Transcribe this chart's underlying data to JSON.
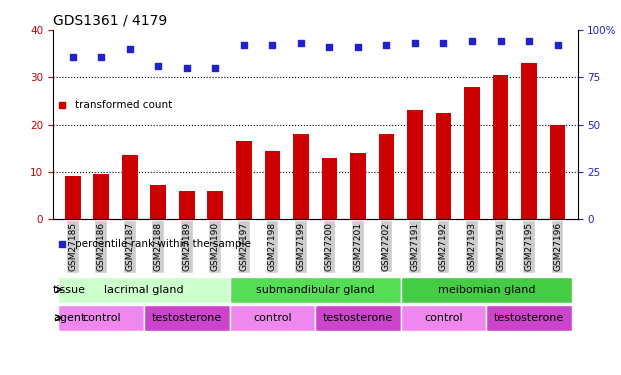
{
  "title": "GDS1361 / 4179",
  "samples": [
    "GSM27185",
    "GSM27186",
    "GSM27187",
    "GSM27188",
    "GSM27189",
    "GSM27190",
    "GSM27197",
    "GSM27198",
    "GSM27199",
    "GSM27200",
    "GSM27201",
    "GSM27202",
    "GSM27191",
    "GSM27192",
    "GSM27193",
    "GSM27194",
    "GSM27195",
    "GSM27196"
  ],
  "bar_values": [
    9.2,
    9.6,
    13.5,
    7.2,
    6.0,
    6.0,
    16.5,
    14.5,
    18.0,
    13.0,
    14.0,
    18.0,
    23.0,
    22.5,
    28.0,
    30.5,
    33.0,
    20.0
  ],
  "dot_values_pct": [
    86,
    86,
    90,
    81,
    80,
    80,
    92,
    92,
    93,
    91,
    91,
    92,
    93,
    93,
    94,
    94,
    94,
    92
  ],
  "bar_color": "#cc0000",
  "dot_color": "#2222cc",
  "ylim_left": [
    0,
    40
  ],
  "ylim_right": [
    0,
    100
  ],
  "yticks_left": [
    0,
    10,
    20,
    30,
    40
  ],
  "yticks_right": [
    0,
    25,
    50,
    75,
    100
  ],
  "tissue_groups": [
    {
      "label": "lacrimal gland",
      "start": 0,
      "end": 6,
      "color": "#ccffcc"
    },
    {
      "label": "submandibular gland",
      "start": 6,
      "end": 12,
      "color": "#55dd55"
    },
    {
      "label": "meibomian gland",
      "start": 12,
      "end": 18,
      "color": "#44cc44"
    }
  ],
  "agent_groups": [
    {
      "label": "control",
      "start": 0,
      "end": 3,
      "color": "#ee88ee"
    },
    {
      "label": "testosterone",
      "start": 3,
      "end": 6,
      "color": "#cc44cc"
    },
    {
      "label": "control",
      "start": 6,
      "end": 9,
      "color": "#ee88ee"
    },
    {
      "label": "testosterone",
      "start": 9,
      "end": 12,
      "color": "#cc44cc"
    },
    {
      "label": "control",
      "start": 12,
      "end": 15,
      "color": "#ee88ee"
    },
    {
      "label": "testosterone",
      "start": 15,
      "end": 18,
      "color": "#cc44cc"
    }
  ],
  "legend_red": "transformed count",
  "legend_blue": "percentile rank within the sample",
  "tissue_label": "tissue",
  "agent_label": "agent",
  "bar_width": 0.55,
  "xtick_bg": "#cccccc",
  "plot_bg": "#ffffff"
}
